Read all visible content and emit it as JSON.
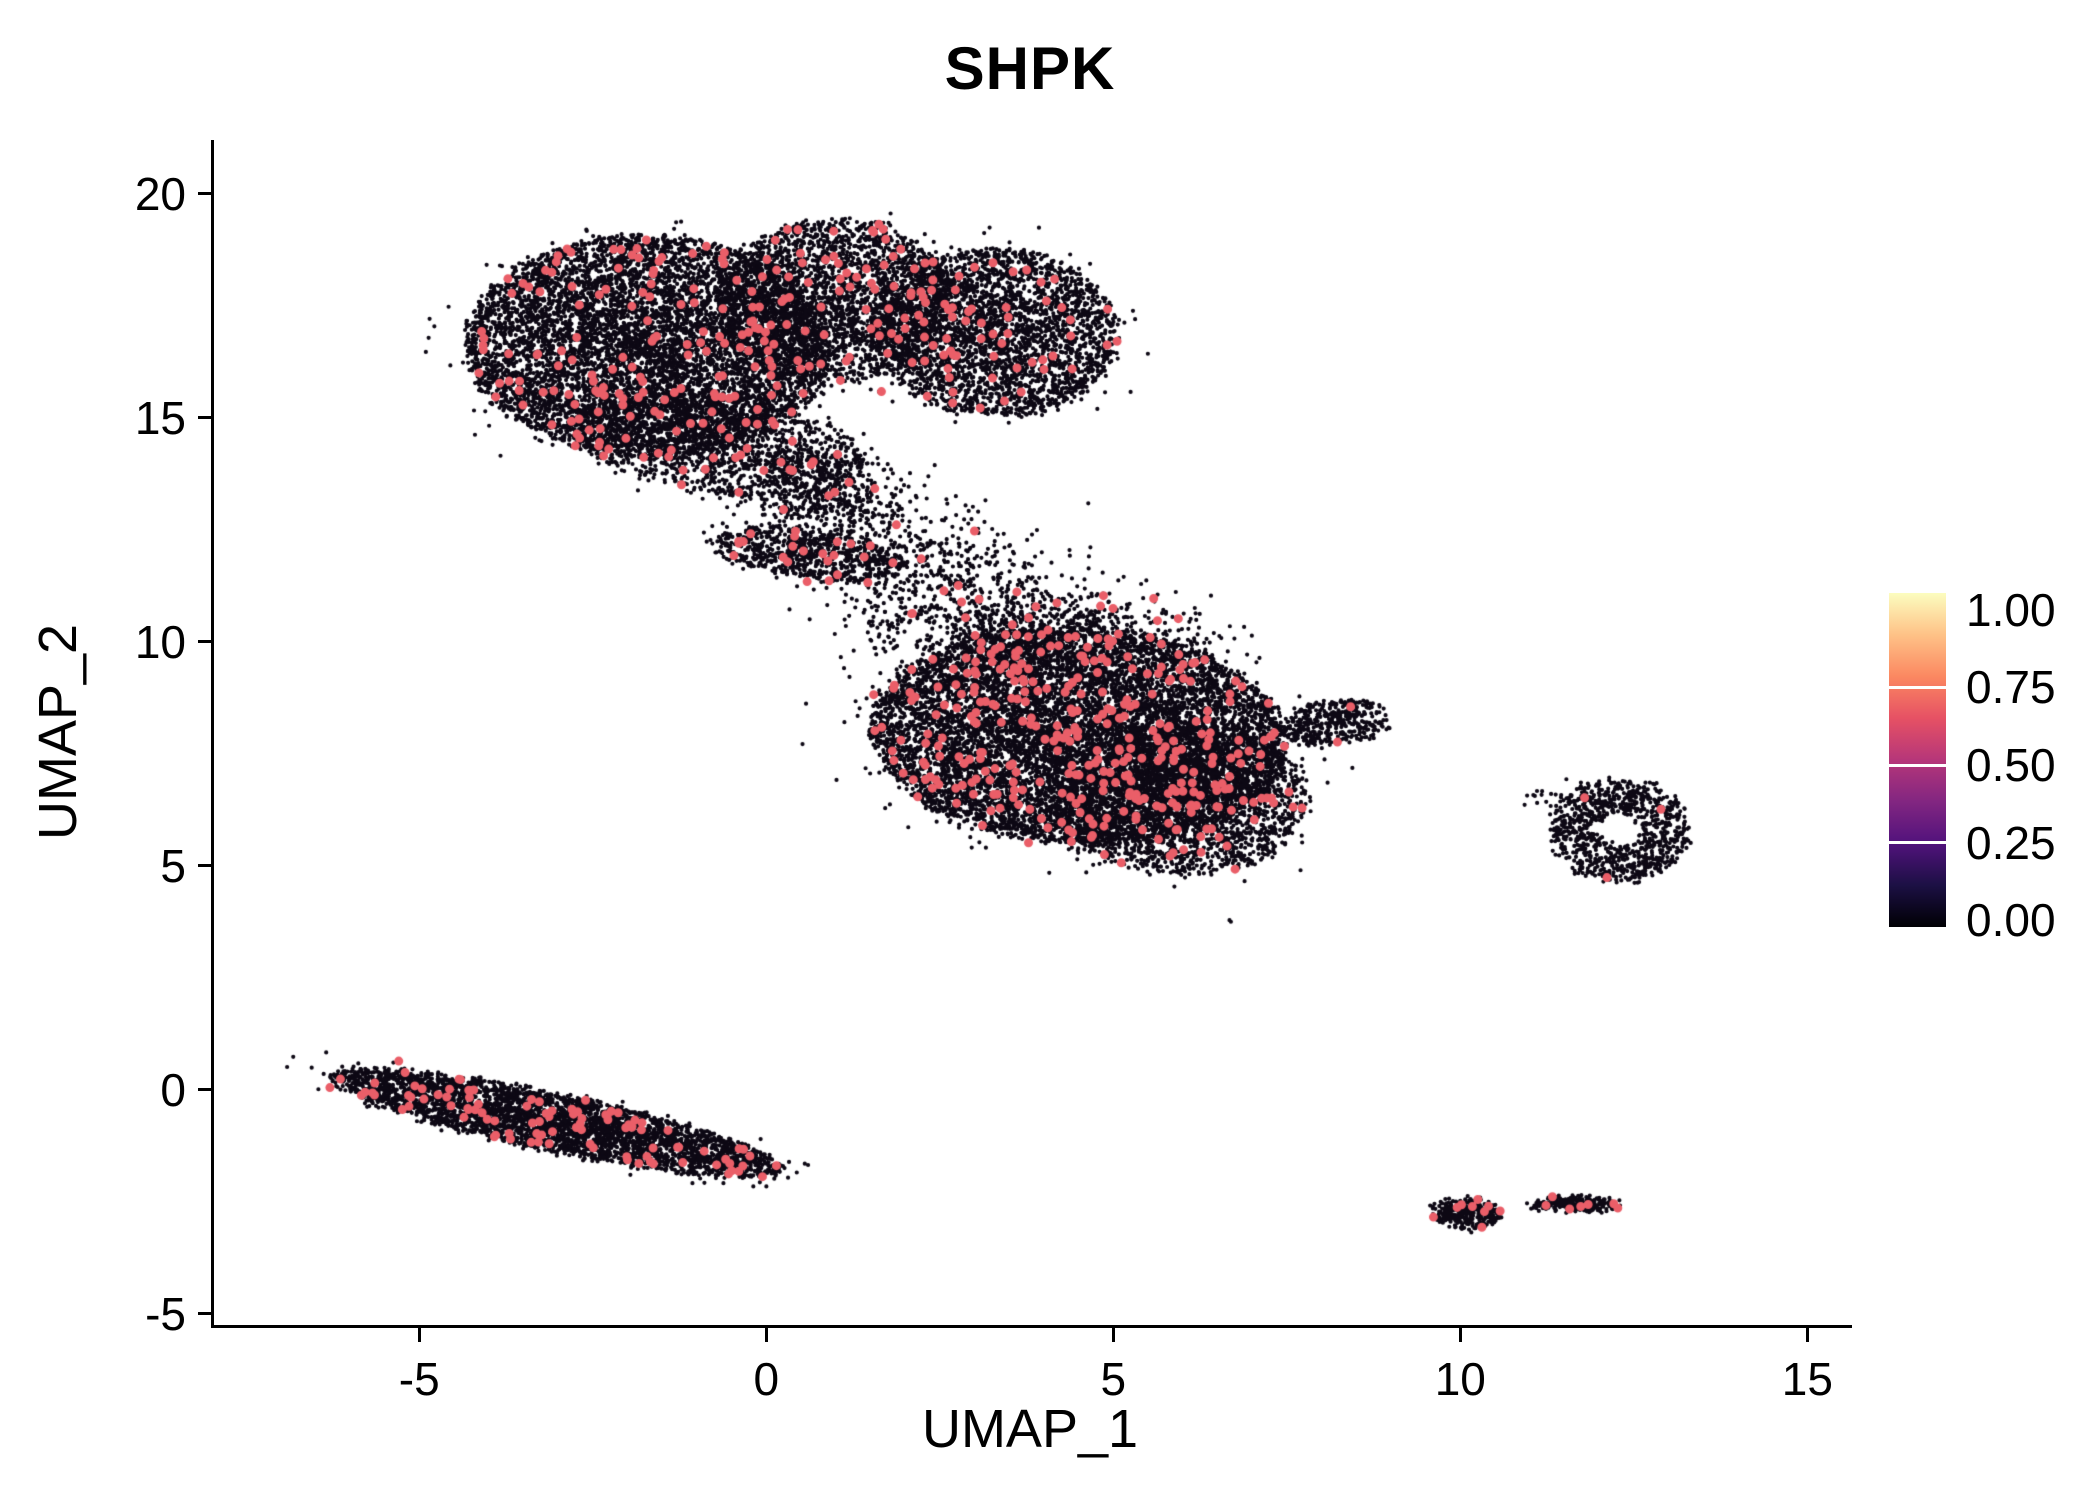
{
  "chart_data": {
    "type": "scatter",
    "title": "SHPK",
    "xlabel": "UMAP_1",
    "ylabel": "UMAP_2",
    "xlim": [
      -8.0,
      15.6
    ],
    "ylim": [
      -5.25,
      21.2
    ],
    "xticks": [
      -5,
      0,
      5,
      10,
      15
    ],
    "yticks": [
      -5,
      0,
      5,
      10,
      15,
      20
    ],
    "grid": false,
    "legend": {
      "position": "right",
      "tick_labels": [
        "1.00",
        "0.75",
        "0.50",
        "0.25",
        "0.00"
      ],
      "tick_values": [
        1.0,
        0.75,
        0.5,
        0.25,
        0.0
      ],
      "gradient_stops": [
        "#000004",
        "#1c1044",
        "#51127c",
        "#822681",
        "#b63679",
        "#e65164",
        "#fb8861",
        "#fec287",
        "#fcfdbf"
      ]
    },
    "style": {
      "background": "#ffffff",
      "axis_color": "#000000",
      "point_color_low": "#0d0814",
      "point_color_high": "#ea5e68",
      "point_radius_low": 2.1,
      "point_radius_high": 4.5
    },
    "seed": 42,
    "clusters": [
      {
        "name": "top-left-lobe",
        "cx": -1.7,
        "cy": 16.6,
        "rx": 2.65,
        "ry": 2.45,
        "angle": -10,
        "n": 7500,
        "frac_high": 0.02,
        "shape": "blob"
      },
      {
        "name": "top-mid-lobe",
        "cx": 1.0,
        "cy": 17.6,
        "rx": 1.7,
        "ry": 1.85,
        "angle": 0,
        "n": 2600,
        "frac_high": 0.02,
        "shape": "blob"
      },
      {
        "name": "top-right-lobe",
        "cx": 3.3,
        "cy": 16.9,
        "rx": 1.75,
        "ry": 1.9,
        "angle": 10,
        "n": 3200,
        "frac_high": 0.018,
        "shape": "blob"
      },
      {
        "name": "top-bottom-tongue",
        "cx": -0.7,
        "cy": 14.4,
        "rx": 2.2,
        "ry": 1.1,
        "angle": -15,
        "n": 1500,
        "frac_high": 0.02,
        "shape": "blob"
      },
      {
        "name": "neck-sparse",
        "cx": 0.9,
        "cy": 13.2,
        "rx": 1.4,
        "ry": 1.0,
        "angle": -30,
        "n": 520,
        "frac_high": 0.02,
        "shape": "gauss"
      },
      {
        "name": "neck-streak",
        "cx": 0.6,
        "cy": 11.95,
        "rx": 1.45,
        "ry": 0.55,
        "angle": -12,
        "n": 750,
        "frac_high": 0.025,
        "shape": "blob"
      },
      {
        "name": "bridge-sparse",
        "cx": 2.4,
        "cy": 11.7,
        "rx": 1.6,
        "ry": 1.2,
        "angle": 0,
        "n": 380,
        "frac_high": 0.02,
        "shape": "gauss"
      },
      {
        "name": "mid-main",
        "cx": 4.5,
        "cy": 7.9,
        "rx": 3.0,
        "ry": 2.4,
        "angle": -8,
        "n": 9500,
        "frac_high": 0.025,
        "shape": "blob"
      },
      {
        "name": "mid-lower-right",
        "cx": 6.0,
        "cy": 6.5,
        "rx": 1.8,
        "ry": 1.7,
        "angle": 0,
        "n": 2600,
        "frac_high": 0.025,
        "shape": "blob"
      },
      {
        "name": "mid-upper-fringe",
        "cx": 3.8,
        "cy": 10.3,
        "rx": 2.3,
        "ry": 1.1,
        "angle": -5,
        "n": 1000,
        "frac_high": 0.02,
        "shape": "gauss"
      },
      {
        "name": "mid-right-tip",
        "cx": 8.2,
        "cy": 8.2,
        "rx": 0.8,
        "ry": 0.5,
        "angle": 15,
        "n": 420,
        "frac_high": 0.01,
        "shape": "blob"
      },
      {
        "name": "stray-point",
        "cx": 6.7,
        "cy": 3.8,
        "rx": 0.07,
        "ry": 0.07,
        "angle": 0,
        "n": 2,
        "frac_high": 0.0,
        "shape": "blob"
      },
      {
        "name": "left-diagonal",
        "cx": -3.0,
        "cy": -0.75,
        "rx": 3.4,
        "ry": 0.62,
        "angle": -18,
        "n": 3800,
        "frac_high": 0.03,
        "shape": "blob"
      },
      {
        "name": "right-ring",
        "cx": 12.3,
        "cy": 5.8,
        "rx": 1.0,
        "ry": 1.15,
        "angle": 0,
        "n": 950,
        "frac_high": 0.004,
        "shape": "ring",
        "inner": 0.32
      },
      {
        "name": "ring-outliers",
        "cx": 11.3,
        "cy": 6.5,
        "rx": 0.55,
        "ry": 0.3,
        "angle": 0,
        "n": 22,
        "frac_high": 0.0,
        "shape": "gauss"
      },
      {
        "name": "bottom-right-blob",
        "cx": 10.1,
        "cy": -2.75,
        "rx": 0.5,
        "ry": 0.33,
        "angle": -10,
        "n": 300,
        "frac_high": 0.035,
        "shape": "blob"
      },
      {
        "name": "bottom-right-strip",
        "cx": 11.7,
        "cy": -2.55,
        "rx": 0.58,
        "ry": 0.16,
        "angle": -5,
        "n": 230,
        "frac_high": 0.035,
        "shape": "blob"
      },
      {
        "name": "bottom-right-mid",
        "cx": 11.1,
        "cy": -2.6,
        "rx": 0.14,
        "ry": 0.09,
        "angle": 0,
        "n": 18,
        "frac_high": 0.03,
        "shape": "blob"
      }
    ]
  }
}
